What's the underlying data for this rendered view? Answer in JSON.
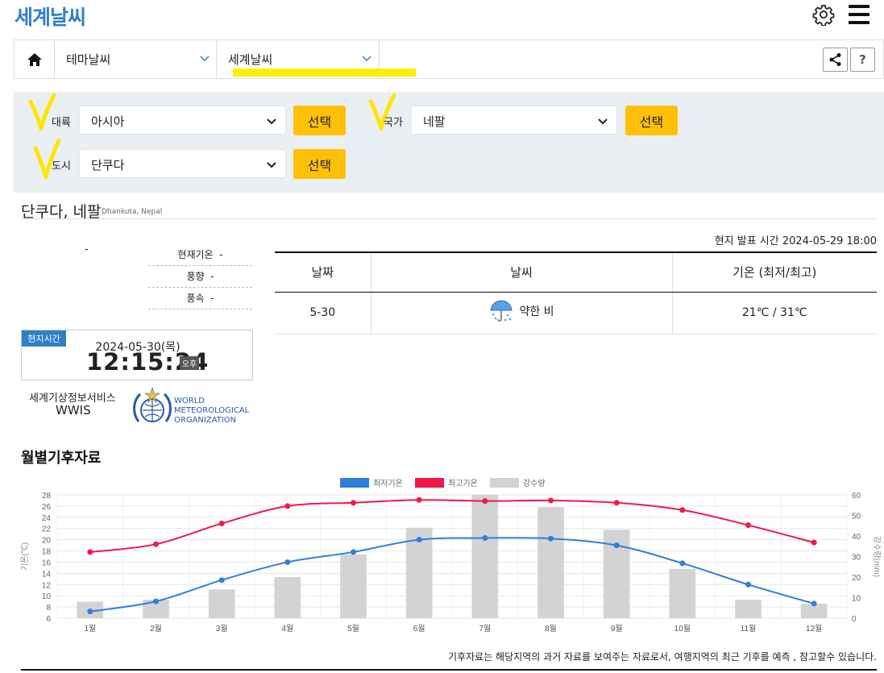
{
  "header": {
    "title": "세계날씨",
    "settings_icon": "gear-icon",
    "menu_icon": "hamburger-icon"
  },
  "nav": {
    "home_icon": "home-icon",
    "dropdown1": "테마날씨",
    "dropdown2": "세계날씨",
    "share_icon": "share-icon",
    "help": "?"
  },
  "filter": {
    "continent_label": "대륙",
    "continent_value": "아시아",
    "country_label": "국가",
    "country_value": "네팔",
    "city_label": "도시",
    "city_value": "단쿠다",
    "select_btn": "선택",
    "highlight_color": "#ffee00"
  },
  "location": {
    "title": "단쿠다, 네팔",
    "sub": "Dhankuta, Nepal"
  },
  "current": {
    "dash": "-",
    "rows": [
      {
        "label": "현재기온",
        "value": "-"
      },
      {
        "label": "풍향",
        "value": "-"
      },
      {
        "label": "풍속",
        "value": "-"
      }
    ]
  },
  "localtime": {
    "badge": "현지시간",
    "date": "2024-05-30(목)",
    "time": "12:15:24",
    "ampm": "오후"
  },
  "wwis": {
    "line1": "세계기상정보서비스",
    "line2": "WWIS",
    "wmo": [
      "WORLD",
      "METEOROLOGICAL",
      "ORGANIZATION"
    ]
  },
  "forecast": {
    "pub": "현지 발표 시간 2024-05-29 18:00",
    "headers": [
      "날짜",
      "날씨",
      "기온 (최저/최고)"
    ],
    "row": {
      "date": "5-30",
      "weather": "약한 비",
      "temp": "21℃ / 31℃",
      "icon": "rain-umbrella-icon"
    }
  },
  "climate_title": "월별기후자료",
  "footnote": "기후자료는 해당지역의 과거 자료를 보여주는 자료로서, 여행지역의 최근 기후를 예측 , 참고할수 있습니다.",
  "chart_data": {
    "type": "bar",
    "categories": [
      "1월",
      "2월",
      "3월",
      "4월",
      "5월",
      "6월",
      "7월",
      "8월",
      "9월",
      "10월",
      "11월",
      "12월"
    ],
    "series": [
      {
        "name": "최저기온",
        "type": "line",
        "axis": "left",
        "color": "#2f7fdb",
        "values": [
          7.2,
          9.0,
          12.8,
          16.0,
          17.8,
          20.0,
          20.3,
          20.2,
          19.0,
          15.8,
          12.0,
          8.6
        ]
      },
      {
        "name": "최고기온",
        "type": "line",
        "axis": "left",
        "color": "#f0184a",
        "values": [
          17.8,
          19.2,
          22.9,
          26.0,
          26.6,
          27.1,
          26.9,
          27.0,
          26.6,
          25.3,
          22.6,
          19.5
        ]
      },
      {
        "name": "강수량",
        "type": "bar",
        "axis": "right",
        "color": "#d3d3d3",
        "values": [
          8,
          9,
          14,
          20,
          31,
          44,
          60,
          54,
          43,
          24,
          9,
          7
        ]
      }
    ],
    "ylabel_left": "기온(℃)",
    "ylabel_right": "강수량(mm)",
    "ylim_left": [
      6,
      28
    ],
    "yticks_left": [
      6,
      8,
      10,
      12,
      14,
      16,
      18,
      20,
      22,
      24,
      26,
      28
    ],
    "ylim_right": [
      0,
      60
    ],
    "yticks_right": [
      0,
      10,
      20,
      30,
      40,
      50,
      60
    ],
    "legend": "top-center",
    "grid": true
  }
}
